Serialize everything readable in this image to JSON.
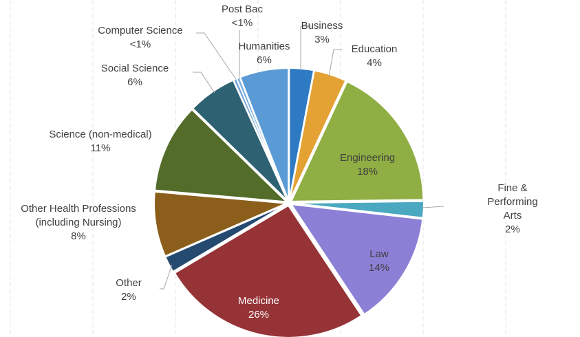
{
  "chart_data": {
    "type": "pie",
    "categories": [
      "Business",
      "Education",
      "Engineering",
      "Fine & Performing Arts",
      "Law",
      "Medicine",
      "Other",
      "Other Health Professions\n(including Nursing)",
      "Science (non-medical)",
      "Social Science",
      "Computer Science",
      "Post Bac",
      "Humanities"
    ],
    "values": [
      3,
      4,
      18,
      2,
      14,
      26,
      2,
      8,
      11,
      6,
      0.4,
      0.4,
      6
    ],
    "value_labels": [
      "3%",
      "4%",
      "18%",
      "2%",
      "14%",
      "26%",
      "2%",
      "8%",
      "11%",
      "6%",
      "<1%",
      "<1%",
      "6%"
    ],
    "colors": [
      "#2e7bc4",
      "#e3a233",
      "#8fae43",
      "#4aa8c0",
      "#8c7fd6",
      "#963337",
      "#244a6f",
      "#8b5f1b",
      "#546c2a",
      "#2e6272",
      "#6fa3d6",
      "#7db0de",
      "#5b9bd5"
    ]
  }
}
